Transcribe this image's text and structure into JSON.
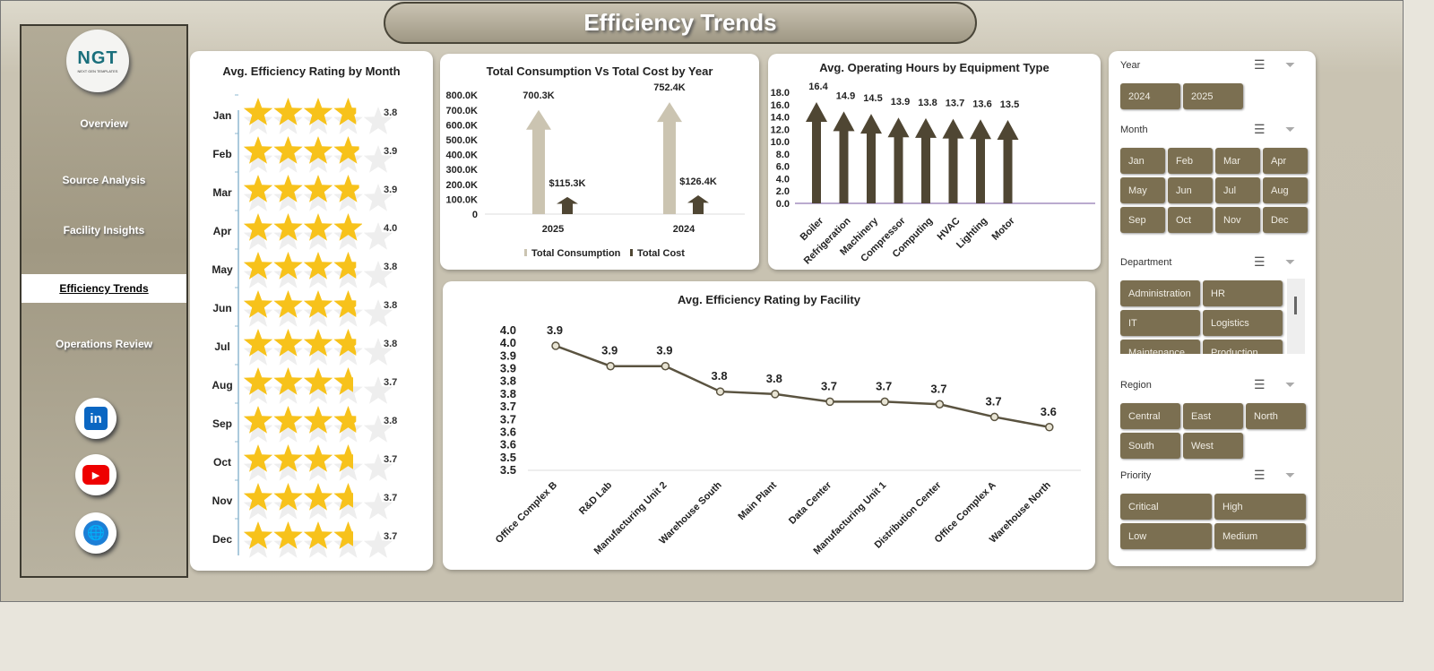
{
  "title": "Efficiency Trends",
  "logo": {
    "text": "NGT",
    "subtext": "NEXT GEN TEMPLATES"
  },
  "nav": [
    {
      "label": "Overview"
    },
    {
      "label": "Source Analysis"
    },
    {
      "label": "Facility Insights"
    },
    {
      "label": "Efficiency Trends",
      "active": true
    },
    {
      "label": "Operations Review"
    }
  ],
  "social": [
    "linkedin-icon",
    "youtube-icon",
    "globe-icon"
  ],
  "colors": {
    "accent": "#7b6f51",
    "dark_bar": "#4f4633",
    "light_bar": "#cbc4b1",
    "star": "#f7c21b",
    "line": "#5a5340"
  },
  "chart_data": [
    {
      "type": "bar",
      "title": "Avg. Efficiency Rating by Month",
      "categories": [
        "Jan",
        "Feb",
        "Mar",
        "Apr",
        "May",
        "Jun",
        "Jul",
        "Aug",
        "Sep",
        "Oct",
        "Nov",
        "Dec"
      ],
      "values": [
        3.8,
        3.9,
        3.9,
        4.0,
        3.8,
        3.8,
        3.8,
        3.7,
        3.8,
        3.7,
        3.7,
        3.7
      ],
      "labels": [
        "3.8",
        "3.9",
        "3.9",
        "4.0",
        "3.8",
        "3.8",
        "3.8",
        "3.7",
        "3.8",
        "3.7",
        "3.7",
        "3.7"
      ],
      "max": 5
    },
    {
      "type": "bar",
      "title": "Total Consumption Vs Total Cost by Year",
      "categories": [
        "2025",
        "2024"
      ],
      "series": [
        {
          "name": "Total Consumption",
          "values": [
            700300,
            752400
          ],
          "labels": [
            "700.3K",
            "752.4K"
          ]
        },
        {
          "name": "Total Cost",
          "values": [
            115300,
            126400
          ],
          "labels": [
            "$115.3K",
            "$126.4K"
          ]
        }
      ],
      "yticks": [
        "0",
        "100.0K",
        "200.0K",
        "300.0K",
        "400.0K",
        "500.0K",
        "600.0K",
        "700.0K",
        "800.0K"
      ],
      "ylim": [
        0,
        800000
      ],
      "legend": "bottom"
    },
    {
      "type": "bar",
      "title": "Avg. Operating Hours by Equipment Type",
      "categories": [
        "Boiler",
        "Refrigeration",
        "Machinery",
        "Compressor",
        "Computing",
        "HVAC",
        "Lighting",
        "Motor"
      ],
      "values": [
        16.4,
        14.9,
        14.5,
        13.9,
        13.8,
        13.7,
        13.6,
        13.5
      ],
      "labels": [
        "16.4",
        "14.9",
        "14.5",
        "13.9",
        "13.8",
        "13.7",
        "13.6",
        "13.5"
      ],
      "yticks": [
        "0.0",
        "2.0",
        "4.0",
        "6.0",
        "8.0",
        "10.0",
        "12.0",
        "14.0",
        "16.0",
        "18.0"
      ],
      "ylim": [
        0,
        18
      ]
    },
    {
      "type": "line",
      "title": "Avg. Efficiency Rating by Facility",
      "categories": [
        "Office Complex B",
        "R&D Lab",
        "Manufacturing Unit 2",
        "Warehouse South",
        "Main Plant",
        "Data Center",
        "Manufacturing Unit 1",
        "Distribution Center",
        "Office Complex A",
        "Warehouse North"
      ],
      "values": [
        3.94,
        3.86,
        3.86,
        3.76,
        3.75,
        3.72,
        3.72,
        3.71,
        3.66,
        3.62
      ],
      "labels": [
        "3.9",
        "3.9",
        "3.9",
        "3.8",
        "3.8",
        "3.7",
        "3.7",
        "3.7",
        "3.7",
        "3.6"
      ],
      "yticks": [
        "3.5",
        "3.5",
        "3.6",
        "3.6",
        "3.7",
        "3.7",
        "3.8",
        "3.8",
        "3.9",
        "3.9",
        "4.0",
        "4.0"
      ],
      "ylim": [
        3.45,
        4.0
      ]
    }
  ],
  "slicers": [
    {
      "label": "Year",
      "items": [
        "2024",
        "2025"
      ]
    },
    {
      "label": "Month",
      "items": [
        "Jan",
        "Feb",
        "Mar",
        "Apr",
        "May",
        "Jun",
        "Jul",
        "Aug",
        "Sep",
        "Oct",
        "Nov",
        "Dec"
      ]
    },
    {
      "label": "Department",
      "items": [
        "Administration",
        "HR",
        "IT",
        "Logistics",
        "Maintenance",
        "Production"
      ]
    },
    {
      "label": "Region",
      "items": [
        "Central",
        "East",
        "North",
        "South",
        "West"
      ]
    },
    {
      "label": "Priority",
      "items": [
        "Critical",
        "High",
        "Low",
        "Medium"
      ]
    }
  ]
}
